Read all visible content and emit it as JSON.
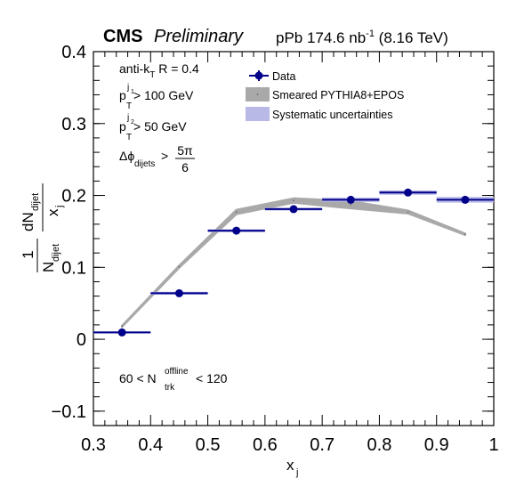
{
  "chart_data": {
    "type": "scatter",
    "header": {
      "experiment": "CMS",
      "status": "Preliminary",
      "lumi_prefix": "pPb 174.6 nb",
      "lumi_exp": "-1",
      "energy": "(8.16 TeV)"
    },
    "xlabel": "x",
    "xlabel_sub": "j",
    "ylabel": {
      "frac_num": "1",
      "frac_den_main": "N",
      "frac_den_sub": "dijet",
      "dn_main": "dN",
      "dn_sub": "dijet",
      "dx_main": "x",
      "dx_sub": "j"
    },
    "xlim": [
      0.3,
      1.0
    ],
    "ylim": [
      -0.12,
      0.4
    ],
    "xticks": [
      0.3,
      0.4,
      0.5,
      0.6,
      0.7,
      0.8,
      0.9,
      1.0
    ],
    "xtick_labels": [
      "0.3",
      "0.4",
      "0.5",
      "0.6",
      "0.7",
      "0.8",
      "0.9",
      "1"
    ],
    "yticks": [
      -0.1,
      0.0,
      0.1,
      0.2,
      0.3,
      0.4
    ],
    "ytick_labels": [
      "−0.1",
      "0",
      "0.1",
      "0.2",
      "0.3",
      "0.4"
    ],
    "annotations": {
      "algo_prefix": "anti-k",
      "algo_sub": "T",
      "algo_suffix": " R = 0.4",
      "pt1_main": "p",
      "pt1_sub": "T",
      "pt1_sup": "j",
      "pt1_supsub": "1",
      "pt1_suffix": " > 100 GeV",
      "pt2_main": "p",
      "pt2_sub": "T",
      "pt2_sup": "j",
      "pt2_supsub": "2",
      "pt2_suffix": " > 50 GeV",
      "dphi_main": "Δϕ",
      "dphi_sub": "dijets",
      "dphi_gt": " > ",
      "dphi_num": "5π",
      "dphi_den": "6",
      "mult_prefix": "60 < N",
      "mult_sub": "trk",
      "mult_sup": "offline",
      "mult_suffix": " < 120"
    },
    "legend": {
      "position": "top-right",
      "entries": [
        "Data",
        "Smeared PYTHIA8+EPOS",
        "Systematic uncertainties"
      ]
    },
    "series": [
      {
        "name": "Data",
        "color": "#00008b",
        "x": [
          0.35,
          0.45,
          0.55,
          0.65,
          0.75,
          0.85,
          0.95
        ],
        "y": [
          0.0095,
          0.064,
          0.151,
          0.181,
          0.194,
          0.204,
          0.194
        ],
        "x_halfwidth": 0.05,
        "syst": [
          0.0015,
          0.002,
          0.002,
          0.002,
          0.003,
          0.003,
          0.004
        ]
      },
      {
        "name": "Smeared PYTHIA8+EPOS",
        "color": "#a9a9a9",
        "x": [
          0.35,
          0.45,
          0.55,
          0.65,
          0.75,
          0.85,
          0.95
        ],
        "y": [
          0.018,
          0.101,
          0.177,
          0.193,
          0.187,
          0.177,
          0.146
        ],
        "band": [
          0.0008,
          0.0015,
          0.003,
          0.003,
          0.005,
          0.002,
          0.001
        ]
      }
    ],
    "colors": {
      "data": "#00008b",
      "model_band": "#a9a9a9",
      "syst_fill": "#b9b9e8"
    }
  }
}
